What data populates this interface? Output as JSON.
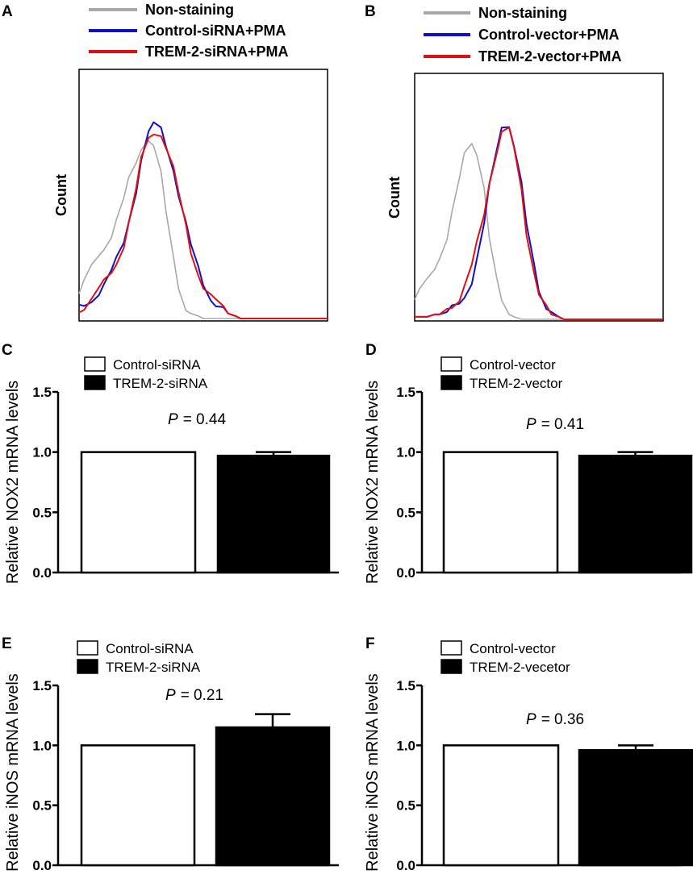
{
  "figure": {
    "histograms": [
      {
        "letter": "A",
        "ylabel": "Count",
        "legend": [
          {
            "label": "Non-staining",
            "color": "#a8a8a8"
          },
          {
            "label": "Control-siRNA+PMA",
            "color": "#1010c8"
          },
          {
            "label": "TREM-2-siRNA+PMA",
            "color": "#e01010"
          }
        ]
      },
      {
        "letter": "B",
        "ylabel": "Count",
        "legend": [
          {
            "label": "Non-staining",
            "color": "#a8a8a8"
          },
          {
            "label": "Control-vector+PMA",
            "color": "#1010c8"
          },
          {
            "label": "TREM-2-vector+PMA",
            "color": "#e01010"
          }
        ]
      }
    ],
    "bars": [
      {
        "letter": "C",
        "legend": [
          "Control-siRNA",
          "TREM-2-siRNA"
        ],
        "ylabel": "Relative NOX2 mRNA levels",
        "pvalue_prefix": "P",
        "pvalue_text": "= 0.44"
      },
      {
        "letter": "D",
        "legend": [
          "Control-vector",
          "TREM-2-vector"
        ],
        "ylabel": "Relative NOX2 mRNA levels",
        "pvalue_prefix": "P",
        "pvalue_text": "= 0.41"
      },
      {
        "letter": "E",
        "legend": [
          "Control-siRNA",
          "TREM-2-siRNA"
        ],
        "ylabel": "Relative iNOS mRNA levels",
        "pvalue_prefix": "P",
        "pvalue_text": "= 0.21"
      },
      {
        "letter": "F",
        "legend": [
          "Control-vector",
          "TREM-2-vecetor"
        ],
        "ylabel": "Relative iNOS mRNA levels",
        "pvalue_prefix": "P",
        "pvalue_text": "= 0.36"
      }
    ]
  },
  "chart_data": [
    {
      "type": "line",
      "panel": "A",
      "ylabel": "Count",
      "x": [
        0.0,
        0.02,
        0.05,
        0.08,
        0.1,
        0.13,
        0.15,
        0.18,
        0.2,
        0.23,
        0.25,
        0.28,
        0.3,
        0.33,
        0.35,
        0.38,
        0.4,
        0.43,
        0.45,
        0.48,
        0.5,
        0.53,
        0.55,
        0.58,
        0.6,
        0.63,
        0.65,
        0.68,
        0.7,
        0.73,
        0.75,
        0.8,
        0.9,
        1.0
      ],
      "series": [
        {
          "name": "Non-staining",
          "color": "#a8a8a8",
          "values": [
            0.1,
            0.14,
            0.2,
            0.25,
            0.29,
            0.34,
            0.4,
            0.47,
            0.55,
            0.62,
            0.69,
            0.73,
            0.7,
            0.58,
            0.41,
            0.24,
            0.13,
            0.05,
            0.02,
            0.01,
            0.0,
            0.0,
            0.0,
            0.0,
            0.0,
            0.0,
            0.0,
            0.0,
            0.0,
            0.0,
            0.0,
            0.0,
            0.0,
            0.0
          ]
        },
        {
          "name": "Control-siRNA+PMA",
          "color": "#1010c8",
          "values": [
            0.04,
            0.05,
            0.08,
            0.11,
            0.14,
            0.18,
            0.23,
            0.3,
            0.4,
            0.52,
            0.64,
            0.74,
            0.77,
            0.76,
            0.7,
            0.61,
            0.5,
            0.38,
            0.28,
            0.2,
            0.14,
            0.09,
            0.06,
            0.04,
            0.02,
            0.01,
            0.0,
            0.0,
            0.0,
            0.0,
            0.0,
            0.0,
            0.0,
            0.0
          ]
        },
        {
          "name": "TREM-2-siRNA+PMA",
          "color": "#e01010",
          "values": [
            0.04,
            0.05,
            0.08,
            0.11,
            0.14,
            0.18,
            0.23,
            0.3,
            0.39,
            0.51,
            0.63,
            0.72,
            0.75,
            0.75,
            0.69,
            0.6,
            0.49,
            0.37,
            0.27,
            0.19,
            0.13,
            0.09,
            0.06,
            0.04,
            0.02,
            0.01,
            0.0,
            0.0,
            0.0,
            0.0,
            0.0,
            0.0,
            0.0,
            0.0
          ]
        }
      ]
    },
    {
      "type": "line",
      "panel": "B",
      "ylabel": "Count",
      "x": [
        0.0,
        0.02,
        0.05,
        0.08,
        0.1,
        0.13,
        0.15,
        0.18,
        0.2,
        0.23,
        0.25,
        0.28,
        0.3,
        0.33,
        0.35,
        0.38,
        0.4,
        0.43,
        0.45,
        0.48,
        0.5,
        0.53,
        0.55,
        0.58,
        0.6,
        0.63,
        0.65,
        0.68,
        0.7,
        0.73,
        0.75,
        0.8,
        0.9,
        1.0
      ],
      "series": [
        {
          "name": "Non-staining",
          "color": "#a8a8a8",
          "values": [
            0.08,
            0.11,
            0.15,
            0.2,
            0.26,
            0.34,
            0.44,
            0.56,
            0.66,
            0.71,
            0.68,
            0.55,
            0.34,
            0.16,
            0.06,
            0.02,
            0.01,
            0.0,
            0.0,
            0.0,
            0.0,
            0.0,
            0.0,
            0.0,
            0.0,
            0.0,
            0.0,
            0.0,
            0.0,
            0.0,
            0.0,
            0.0,
            0.0,
            0.0
          ]
        },
        {
          "name": "Control-vector+PMA",
          "color": "#1010c8",
          "values": [
            0.01,
            0.01,
            0.01,
            0.02,
            0.02,
            0.03,
            0.04,
            0.06,
            0.1,
            0.16,
            0.25,
            0.38,
            0.53,
            0.68,
            0.79,
            0.8,
            0.71,
            0.55,
            0.37,
            0.22,
            0.12,
            0.06,
            0.03,
            0.01,
            0.0,
            0.0,
            0.0,
            0.0,
            0.0,
            0.0,
            0.0,
            0.0,
            0.0,
            0.0
          ]
        },
        {
          "name": "TREM-2-vector+PMA",
          "color": "#e01010",
          "values": [
            0.01,
            0.01,
            0.01,
            0.02,
            0.02,
            0.04,
            0.06,
            0.09,
            0.14,
            0.21,
            0.3,
            0.42,
            0.56,
            0.69,
            0.77,
            0.77,
            0.68,
            0.52,
            0.35,
            0.21,
            0.11,
            0.05,
            0.02,
            0.01,
            0.0,
            0.0,
            0.0,
            0.0,
            0.0,
            0.0,
            0.0,
            0.0,
            0.0,
            0.0
          ]
        }
      ]
    },
    {
      "type": "bar",
      "panel": "C",
      "categories": [
        "Control-siRNA",
        "TREM-2-siRNA"
      ],
      "values": [
        1.0,
        0.97
      ],
      "errors": [
        0,
        0.03
      ],
      "fills": [
        "#ffffff",
        "#000000"
      ],
      "ylabel": "Relative NOX2 mRNA levels",
      "ylim": [
        0,
        1.5
      ],
      "yticks": [
        "0.0",
        "0.5",
        "1.0",
        "1.5"
      ],
      "annotation": "P = 0.44",
      "annotation_value": 1.25
    },
    {
      "type": "bar",
      "panel": "D",
      "categories": [
        "Control-vector",
        "TREM-2-vector"
      ],
      "values": [
        1.0,
        0.97
      ],
      "errors": [
        0,
        0.03
      ],
      "fills": [
        "#ffffff",
        "#000000"
      ],
      "ylabel": "Relative NOX2 mRNA levels",
      "ylim": [
        0,
        1.5
      ],
      "yticks": [
        "0.0",
        "0.5",
        "1.0",
        "1.5"
      ],
      "annotation": "P = 0.41",
      "annotation_value": 1.25
    },
    {
      "type": "bar",
      "panel": "E",
      "categories": [
        "Control-siRNA",
        "TREM-2-siRNA"
      ],
      "values": [
        1.0,
        1.15
      ],
      "errors": [
        0,
        0.11
      ],
      "fills": [
        "#ffffff",
        "#000000"
      ],
      "ylabel": "Relative iNOS mRNA levels",
      "ylim": [
        0,
        1.5
      ],
      "yticks": [
        "0.0",
        "0.5",
        "1.0",
        "1.5"
      ],
      "annotation": "P = 0.21",
      "annotation_value": 1.33
    },
    {
      "type": "bar",
      "panel": "F",
      "categories": [
        "Control-vector",
        "TREM-2-vecetor"
      ],
      "values": [
        1.0,
        0.96
      ],
      "errors": [
        0,
        0.04
      ],
      "fills": [
        "#ffffff",
        "#000000"
      ],
      "ylabel": "Relative iNOS mRNA levels",
      "ylim": [
        0,
        1.5
      ],
      "yticks": [
        "0.0",
        "0.5",
        "1.0",
        "1.5"
      ],
      "annotation": "P = 0.36",
      "annotation_value": 1.17
    }
  ]
}
